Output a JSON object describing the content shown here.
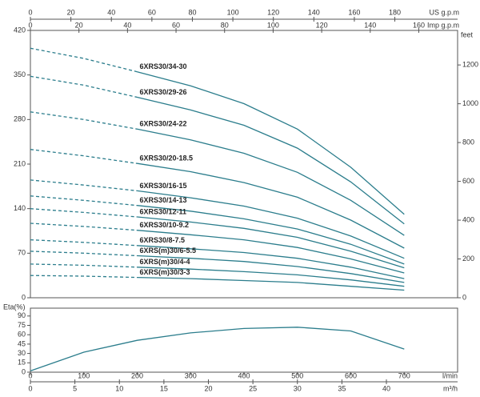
{
  "chart_data": [
    {
      "type": "line",
      "x": [
        0,
        6,
        12,
        18,
        24,
        30,
        36,
        42
      ],
      "xlim": [
        0,
        48
      ],
      "top_axes": [
        {
          "label": "US g.p.m",
          "xlim": [
            0,
            211
          ],
          "xticks": [
            0,
            20,
            40,
            60,
            80,
            100,
            120,
            140,
            160,
            180
          ]
        },
        {
          "label": "Imp g.p.m",
          "xlim": [
            0,
            176
          ],
          "xticks": [
            0,
            20,
            40,
            60,
            80,
            100,
            120,
            140,
            160
          ]
        }
      ],
      "ylim": [
        0,
        420
      ],
      "yticks": [
        0,
        70,
        140,
        210,
        280,
        350,
        420
      ],
      "y2_label": "feet",
      "y2lim": [
        0,
        1378
      ],
      "y2ticks": [
        0,
        200,
        400,
        600,
        800,
        1000,
        1200
      ],
      "dashed_range": [
        0,
        12
      ],
      "series": [
        {
          "name": "6XRS30/34-30",
          "color": "#2b7d8c",
          "values": [
            392,
            376,
            355,
            333,
            305,
            265,
            205,
            131
          ]
        },
        {
          "name": "6XRS30/29-26",
          "color": "#2b7d8c",
          "values": [
            348,
            334,
            315,
            295,
            271,
            235,
            182,
            116
          ]
        },
        {
          "name": "6XRS30/24-22",
          "color": "#2b7d8c",
          "values": [
            292,
            280,
            265,
            248,
            227,
            197,
            153,
            98
          ]
        },
        {
          "name": "6XRS30/20-18.5",
          "color": "#2b7d8c",
          "values": [
            233,
            223,
            211,
            198,
            181,
            158,
            122,
            78
          ]
        },
        {
          "name": "6XRS30/16-15",
          "color": "#2b7d8c",
          "values": [
            185,
            177,
            168,
            157,
            144,
            125,
            97,
            62
          ]
        },
        {
          "name": "6XRS30/14-13",
          "color": "#2b7d8c",
          "values": [
            160,
            153,
            145,
            136,
            124,
            108,
            84,
            53
          ]
        },
        {
          "name": "6XRS30/12-11",
          "color": "#2b7d8c",
          "values": [
            140,
            134,
            127,
            119,
            109,
            95,
            73,
            47
          ]
        },
        {
          "name": "6XRS30/10-9.2",
          "color": "#2b7d8c",
          "values": [
            117,
            112,
            106,
            99,
            91,
            79,
            61,
            39
          ]
        },
        {
          "name": "6XRS30/8-7.5",
          "color": "#2b7d8c",
          "values": [
            91,
            87,
            82,
            77,
            71,
            62,
            48,
            30
          ]
        },
        {
          "name": "6XRS(m)30/6-5.5",
          "color": "#2b7d8c",
          "values": [
            73,
            70,
            66,
            62,
            57,
            49,
            38,
            24
          ]
        },
        {
          "name": "6XRS(m)30/4-4",
          "color": "#2b7d8c",
          "values": [
            53,
            51,
            48,
            45,
            41,
            36,
            28,
            18
          ]
        },
        {
          "name": "6XRS(m)30/3-3",
          "color": "#2b7d8c",
          "values": [
            35,
            34,
            32,
            30,
            27,
            24,
            18,
            12
          ]
        }
      ]
    },
    {
      "type": "line",
      "y_label": "Eta(%)",
      "x": [
        0,
        6,
        12,
        18,
        24,
        30,
        36,
        42
      ],
      "xlim": [
        0,
        48
      ],
      "xticks": [
        0,
        5,
        10,
        15,
        20,
        25,
        30,
        35,
        40
      ],
      "x_label": "m³/h",
      "bottom_axes": [
        {
          "label": "l/min",
          "xlim": [
            0,
            800
          ],
          "xticks": [
            0,
            100,
            200,
            300,
            400,
            500,
            600,
            700
          ]
        }
      ],
      "ylim": [
        0,
        100
      ],
      "yticks": [
        0,
        15,
        30,
        45,
        60,
        75,
        90
      ],
      "series": [
        {
          "color": "#2b7d8c",
          "values": [
            2,
            32,
            51,
            63,
            70,
            72,
            66,
            37
          ]
        }
      ]
    }
  ]
}
